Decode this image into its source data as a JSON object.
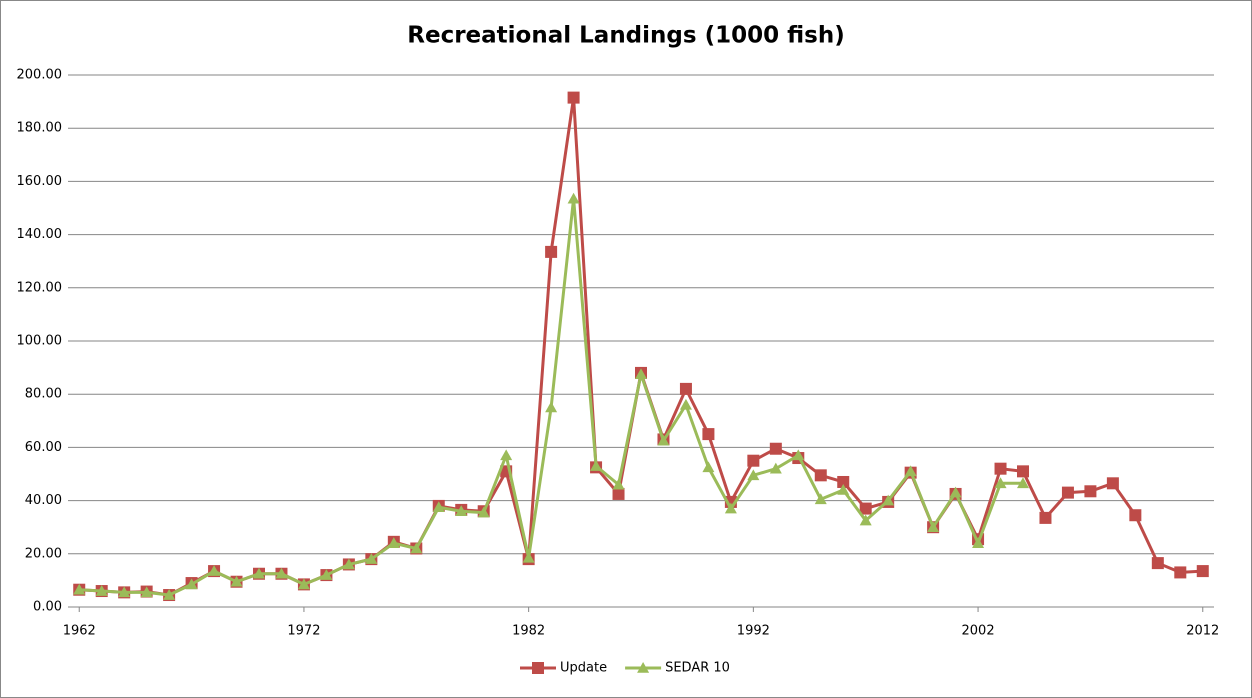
{
  "chart_data": {
    "type": "line",
    "title": "Recreational Landings (1000 fish)",
    "x": [
      1962,
      1963,
      1964,
      1965,
      1966,
      1967,
      1968,
      1969,
      1970,
      1971,
      1972,
      1973,
      1974,
      1975,
      1976,
      1977,
      1978,
      1979,
      1980,
      1981,
      1982,
      1983,
      1984,
      1985,
      1986,
      1987,
      1988,
      1989,
      1990,
      1991,
      1992,
      1993,
      1994,
      1995,
      1996,
      1997,
      1998,
      1999,
      2000,
      2001,
      2002,
      2003,
      2004,
      2005,
      2006,
      2007,
      2008,
      2009,
      2010,
      2011,
      2012
    ],
    "series": [
      {
        "name": "Update",
        "color": "#be4b48",
        "marker": "square",
        "values": [
          6.5,
          6,
          5.5,
          5.8,
          4.5,
          9,
          13.5,
          9.5,
          12.5,
          12.5,
          8.5,
          12,
          16,
          18,
          24.5,
          22,
          38,
          36.5,
          36,
          51,
          18,
          133.5,
          191.5,
          52.5,
          42.5,
          88,
          63,
          82,
          65,
          39.5,
          55,
          59.5,
          56,
          49.5,
          47,
          37,
          39.5,
          50.5,
          30,
          42.5,
          25.5,
          52,
          51,
          33.5,
          43,
          43.5,
          46.5,
          34.5,
          16.5,
          13,
          13.5
        ]
      },
      {
        "name": "SEDAR 10",
        "color": "#9bbb59",
        "marker": "triangle",
        "values": [
          6.5,
          6,
          5.5,
          5.5,
          4.5,
          8.5,
          13.5,
          9.5,
          12.5,
          12.5,
          8.5,
          12,
          16,
          18,
          24,
          22,
          37.5,
          36,
          35.5,
          57,
          18.5,
          75,
          153.5,
          53,
          46,
          87.5,
          62.5,
          76,
          52.5,
          37,
          49.5,
          52,
          57,
          40.5,
          44,
          32.5,
          40,
          51,
          30,
          43,
          24,
          46.5,
          46.5,
          null,
          null,
          null,
          null,
          null,
          null,
          null,
          null
        ]
      }
    ],
    "xlim": [
      1961.5,
      2012.5
    ],
    "xticks": [
      1962,
      1972,
      1982,
      1992,
      2002,
      2012
    ],
    "ylim": [
      0,
      200
    ],
    "yticks": [
      {
        "value": 0,
        "label": "0.00"
      },
      {
        "value": 20,
        "label": "20.00"
      },
      {
        "value": 40,
        "label": "40.00"
      },
      {
        "value": 60,
        "label": "60.00"
      },
      {
        "value": 80,
        "label": "80.00"
      },
      {
        "value": 100,
        "label": "100.00"
      },
      {
        "value": 120,
        "label": "120.00"
      },
      {
        "value": 140,
        "label": "140.00"
      },
      {
        "value": 160,
        "label": "160.00"
      },
      {
        "value": 180,
        "label": "180.00"
      },
      {
        "value": 200,
        "label": "200.00"
      }
    ],
    "grid": true,
    "legend": "bottom"
  }
}
